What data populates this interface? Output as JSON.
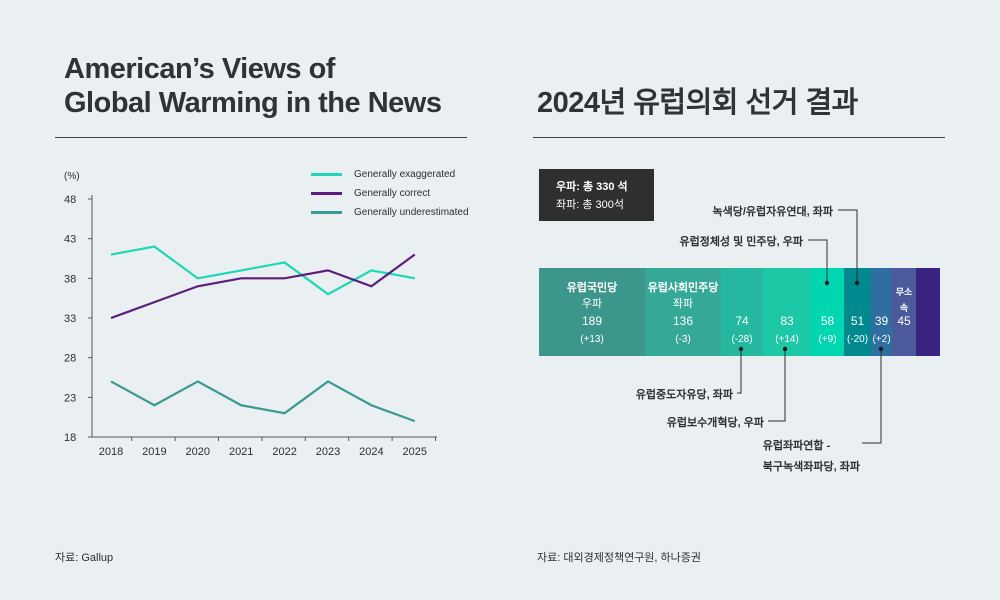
{
  "left": {
    "title_line1": "American’s Views of",
    "title_line2": "Global Warming in the News",
    "source": "자료: Gallup"
  },
  "right": {
    "title": "2024년 유럽의회 선거 결과",
    "source": "자료: 대외경제정책연구원, 하나증권",
    "summary": {
      "right_total": "우파: 총 330 석",
      "left_total": "좌파: 총 300석"
    },
    "segments": [
      {
        "name": "유럽국민당",
        "side": "우파",
        "seats": "189",
        "change": "(+13)",
        "color": "#3d968c"
      },
      {
        "name": "유럽사회민주당",
        "side": "좌파",
        "seats": "136",
        "change": "(-3)",
        "color": "#35a898"
      },
      {
        "name": "",
        "side": "",
        "seats": "74",
        "change": "(-28)",
        "color": "#25b8a0"
      },
      {
        "name": "",
        "side": "",
        "seats": "83",
        "change": "(+14)",
        "color": "#1cc8a6"
      },
      {
        "name": "",
        "side": "",
        "seats": "58",
        "change": "(+9)",
        "color": "#00d6b0"
      },
      {
        "name": "",
        "side": "",
        "seats": "51",
        "change": "(-20)",
        "color": "#008a8f"
      },
      {
        "name": "",
        "side": "",
        "seats": "39",
        "change": "(+2)",
        "color": "#2f6e9e"
      },
      {
        "name": "무소속",
        "side": "",
        "seats": "45",
        "change": "",
        "color": "#4a5a9a"
      },
      {
        "name": "",
        "side": "",
        "seats": "",
        "change": "",
        "color": "#3a2280"
      }
    ],
    "annotations": {
      "greens": "녹색당/유럽자유연대, 좌파",
      "identity": "유럽정체성 및 민주당, 우파",
      "renew": "유럽중도자유당, 좌파",
      "ecr": "유럽보수개혁당, 우파",
      "left_line1": "유럽좌파연합 -",
      "left_line2": "북구녹색좌파당, 좌파"
    }
  },
  "chart_data": {
    "type": "line",
    "ylabel": "(%)",
    "x": [
      "2018",
      "2019",
      "2020",
      "2021",
      "2022",
      "2023",
      "2024",
      "2025"
    ],
    "ylim": [
      18,
      48
    ],
    "yticks": [
      18,
      23,
      28,
      33,
      38,
      43,
      48
    ],
    "grid": false,
    "legend": "top-right",
    "series": [
      {
        "name": "Generally exaggerated",
        "color": "#1fd6b5",
        "values": [
          41,
          42,
          38,
          39,
          40,
          36,
          39,
          38
        ]
      },
      {
        "name": "Generally correct",
        "color": "#5c1e7a",
        "values": [
          33,
          35,
          37,
          38,
          38,
          39,
          37,
          41
        ]
      },
      {
        "name": "Generally underestimated",
        "color": "#3a9a8f",
        "values": [
          25,
          22,
          25,
          22,
          21,
          25,
          22,
          20
        ]
      }
    ]
  }
}
